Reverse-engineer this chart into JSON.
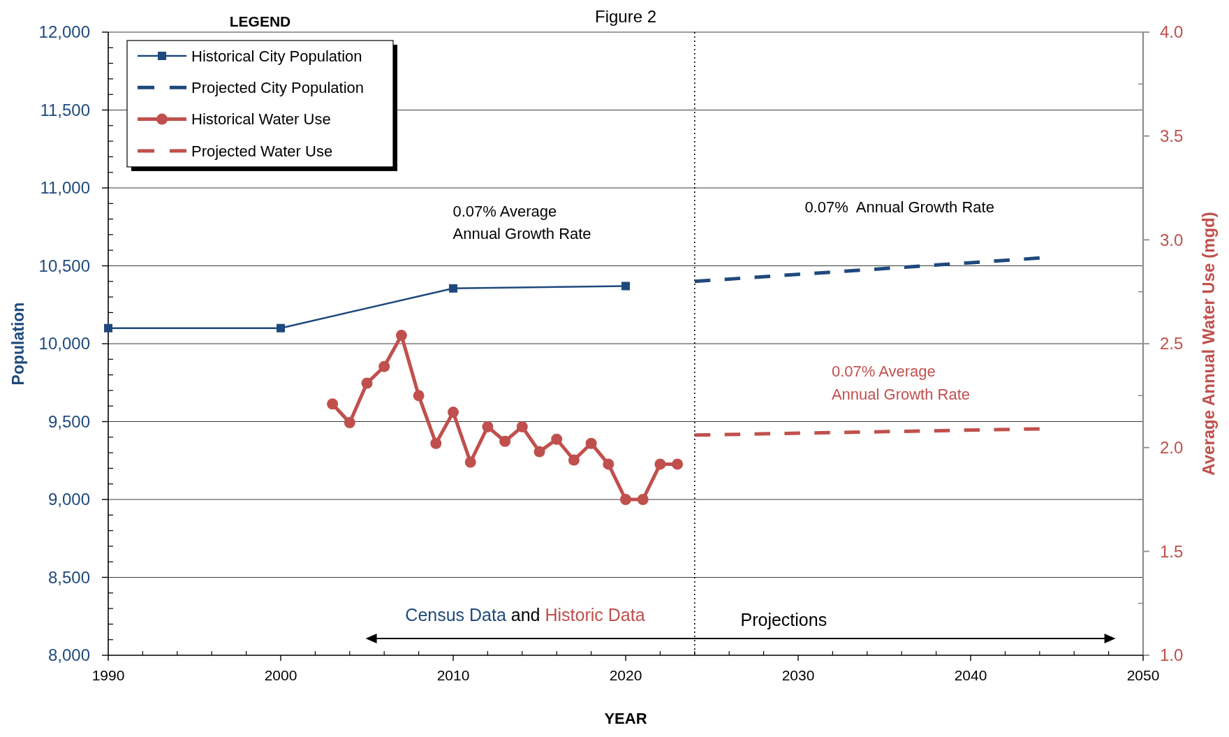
{
  "chart_data": {
    "type": "line",
    "title": "Figure 2",
    "xlabel": "YEAR",
    "ylabel": "Population",
    "y2label": "Average Annual Water Use (mgd)",
    "legend_title": "LEGEND",
    "legend": "top left",
    "grid": "y",
    "xlim": [
      1990,
      2050
    ],
    "xticks": [
      1990,
      {
        "value": 1992,
        "label": null
      },
      {
        "value": 1994,
        "label": null
      },
      {
        "value": 1996,
        "label": null
      },
      {
        "value": 1998,
        "label": null
      },
      2000,
      {
        "value": 2002,
        "label": null
      },
      {
        "value": 2004,
        "label": null
      },
      {
        "value": 2006,
        "label": null
      },
      {
        "value": 2008,
        "label": null
      },
      2010,
      {
        "value": 2012,
        "label": null
      },
      {
        "value": 2014,
        "label": null
      },
      {
        "value": 2016,
        "label": null
      },
      {
        "value": 2018,
        "label": null
      },
      2020,
      {
        "value": 2022,
        "label": null
      },
      {
        "value": 2024,
        "label": null
      },
      {
        "value": 2026,
        "label": null
      },
      {
        "value": 2028,
        "label": null
      },
      2030,
      {
        "value": 2032,
        "label": null
      },
      {
        "value": 2034,
        "label": null
      },
      {
        "value": 2036,
        "label": null
      },
      {
        "value": 2038,
        "label": null
      },
      2040,
      {
        "value": 2042,
        "label": null
      },
      {
        "value": 2044,
        "label": null
      },
      {
        "value": 2046,
        "label": null
      },
      {
        "value": 2048,
        "label": null
      },
      2050
    ],
    "ylim": [
      8000,
      12000
    ],
    "yticks": [
      {
        "value": 8000,
        "label": "8,000"
      },
      {
        "value": 8100,
        "label": null
      },
      {
        "value": 8200,
        "label": null
      },
      {
        "value": 8300,
        "label": null
      },
      {
        "value": 8400,
        "label": null
      },
      {
        "value": 8500,
        "label": "8,500"
      },
      {
        "value": 8600,
        "label": null
      },
      {
        "value": 8700,
        "label": null
      },
      {
        "value": 8800,
        "label": null
      },
      {
        "value": 8900,
        "label": null
      },
      {
        "value": 9000,
        "label": "9,000"
      },
      {
        "value": 9100,
        "label": null
      },
      {
        "value": 9200,
        "label": null
      },
      {
        "value": 9300,
        "label": null
      },
      {
        "value": 9400,
        "label": null
      },
      {
        "value": 9500,
        "label": "9,500"
      },
      {
        "value": 9600,
        "label": null
      },
      {
        "value": 9700,
        "label": null
      },
      {
        "value": 9800,
        "label": null
      },
      {
        "value": 9900,
        "label": null
      },
      {
        "value": 10000,
        "label": "10,000"
      },
      {
        "value": 10100,
        "label": null
      },
      {
        "value": 10200,
        "label": null
      },
      {
        "value": 10300,
        "label": null
      },
      {
        "value": 10400,
        "label": null
      },
      {
        "value": 10500,
        "label": "10,500"
      },
      {
        "value": 10600,
        "label": null
      },
      {
        "value": 10700,
        "label": null
      },
      {
        "value": 10800,
        "label": null
      },
      {
        "value": 10900,
        "label": null
      },
      {
        "value": 11000,
        "label": "11,000"
      },
      {
        "value": 11100,
        "label": null
      },
      {
        "value": 11200,
        "label": null
      },
      {
        "value": 11300,
        "label": null
      },
      {
        "value": 11400,
        "label": null
      },
      {
        "value": 11500,
        "label": "11,500"
      },
      {
        "value": 11600,
        "label": null
      },
      {
        "value": 11700,
        "label": null
      },
      {
        "value": 11800,
        "label": null
      },
      {
        "value": 11900,
        "label": null
      },
      {
        "value": 12000,
        "label": "12,000"
      }
    ],
    "y2lim": [
      1,
      4
    ],
    "y2ticks": [
      {
        "value": 1,
        "label": "1.0"
      },
      {
        "value": 1.25,
        "label": null
      },
      {
        "value": 1.5,
        "label": "1.5"
      },
      {
        "value": 1.75,
        "label": null
      },
      {
        "value": 2,
        "label": "2.0"
      },
      {
        "value": 2.25,
        "label": null
      },
      {
        "value": 2.5,
        "label": "2.5"
      },
      {
        "value": 2.75,
        "label": null
      },
      {
        "value": 3,
        "label": "3.0"
      },
      {
        "value": 3.25,
        "label": null
      },
      {
        "value": 3.5,
        "label": "3.5"
      },
      {
        "value": 3.75,
        "label": null
      },
      {
        "value": 4,
        "label": "4.0"
      }
    ],
    "series": [
      {
        "name": "Historical City Population",
        "color": "#1f497d",
        "x": [
          1990,
          2000,
          2010,
          2020
        ],
        "values": [
          10100,
          10100,
          10355,
          10370
        ],
        "marker": "square",
        "line_style": "solid"
      },
      {
        "name": "Projected City Population",
        "color": "#1f497d",
        "x": [
          2024,
          2044
        ],
        "values": [
          10400,
          10550
        ],
        "line_style": "dashed"
      },
      {
        "name": "Historical Water Use",
        "color": "#c0504d",
        "axis": "y2",
        "x": [
          2003,
          2004,
          2005,
          2006,
          2007,
          2008,
          2009,
          2010,
          2011,
          2012,
          2013,
          2014,
          2015,
          2016,
          2017,
          2018,
          2019,
          2020,
          2021,
          2022,
          2023
        ],
        "values": [
          2.21,
          2.12,
          2.31,
          2.39,
          2.54,
          2.25,
          2.02,
          2.17,
          1.93,
          2.1,
          2.03,
          2.1,
          1.98,
          2.04,
          1.94,
          2.02,
          1.92,
          1.75,
          1.75,
          1.92,
          1.92
        ],
        "marker": "circle",
        "line_style": "solid"
      },
      {
        "name": "Projected Water Use",
        "color": "#c0504d",
        "axis": "y2",
        "x": [
          2024,
          2044
        ],
        "values": [
          2.06,
          2.09
        ],
        "line_style": "dashed"
      }
    ],
    "ref_lines": [
      {
        "axis": "x",
        "value": 2024,
        "color": "#000000",
        "line_style": "dotted"
      }
    ],
    "annotations": [
      "0.07% Average\nAnnual Growth Rate",
      "0.07%  Annual Growth Rate",
      "0.07% Average\nAnnual Growth Rate",
      "Census Data and Historic Data",
      "Projections"
    ]
  }
}
